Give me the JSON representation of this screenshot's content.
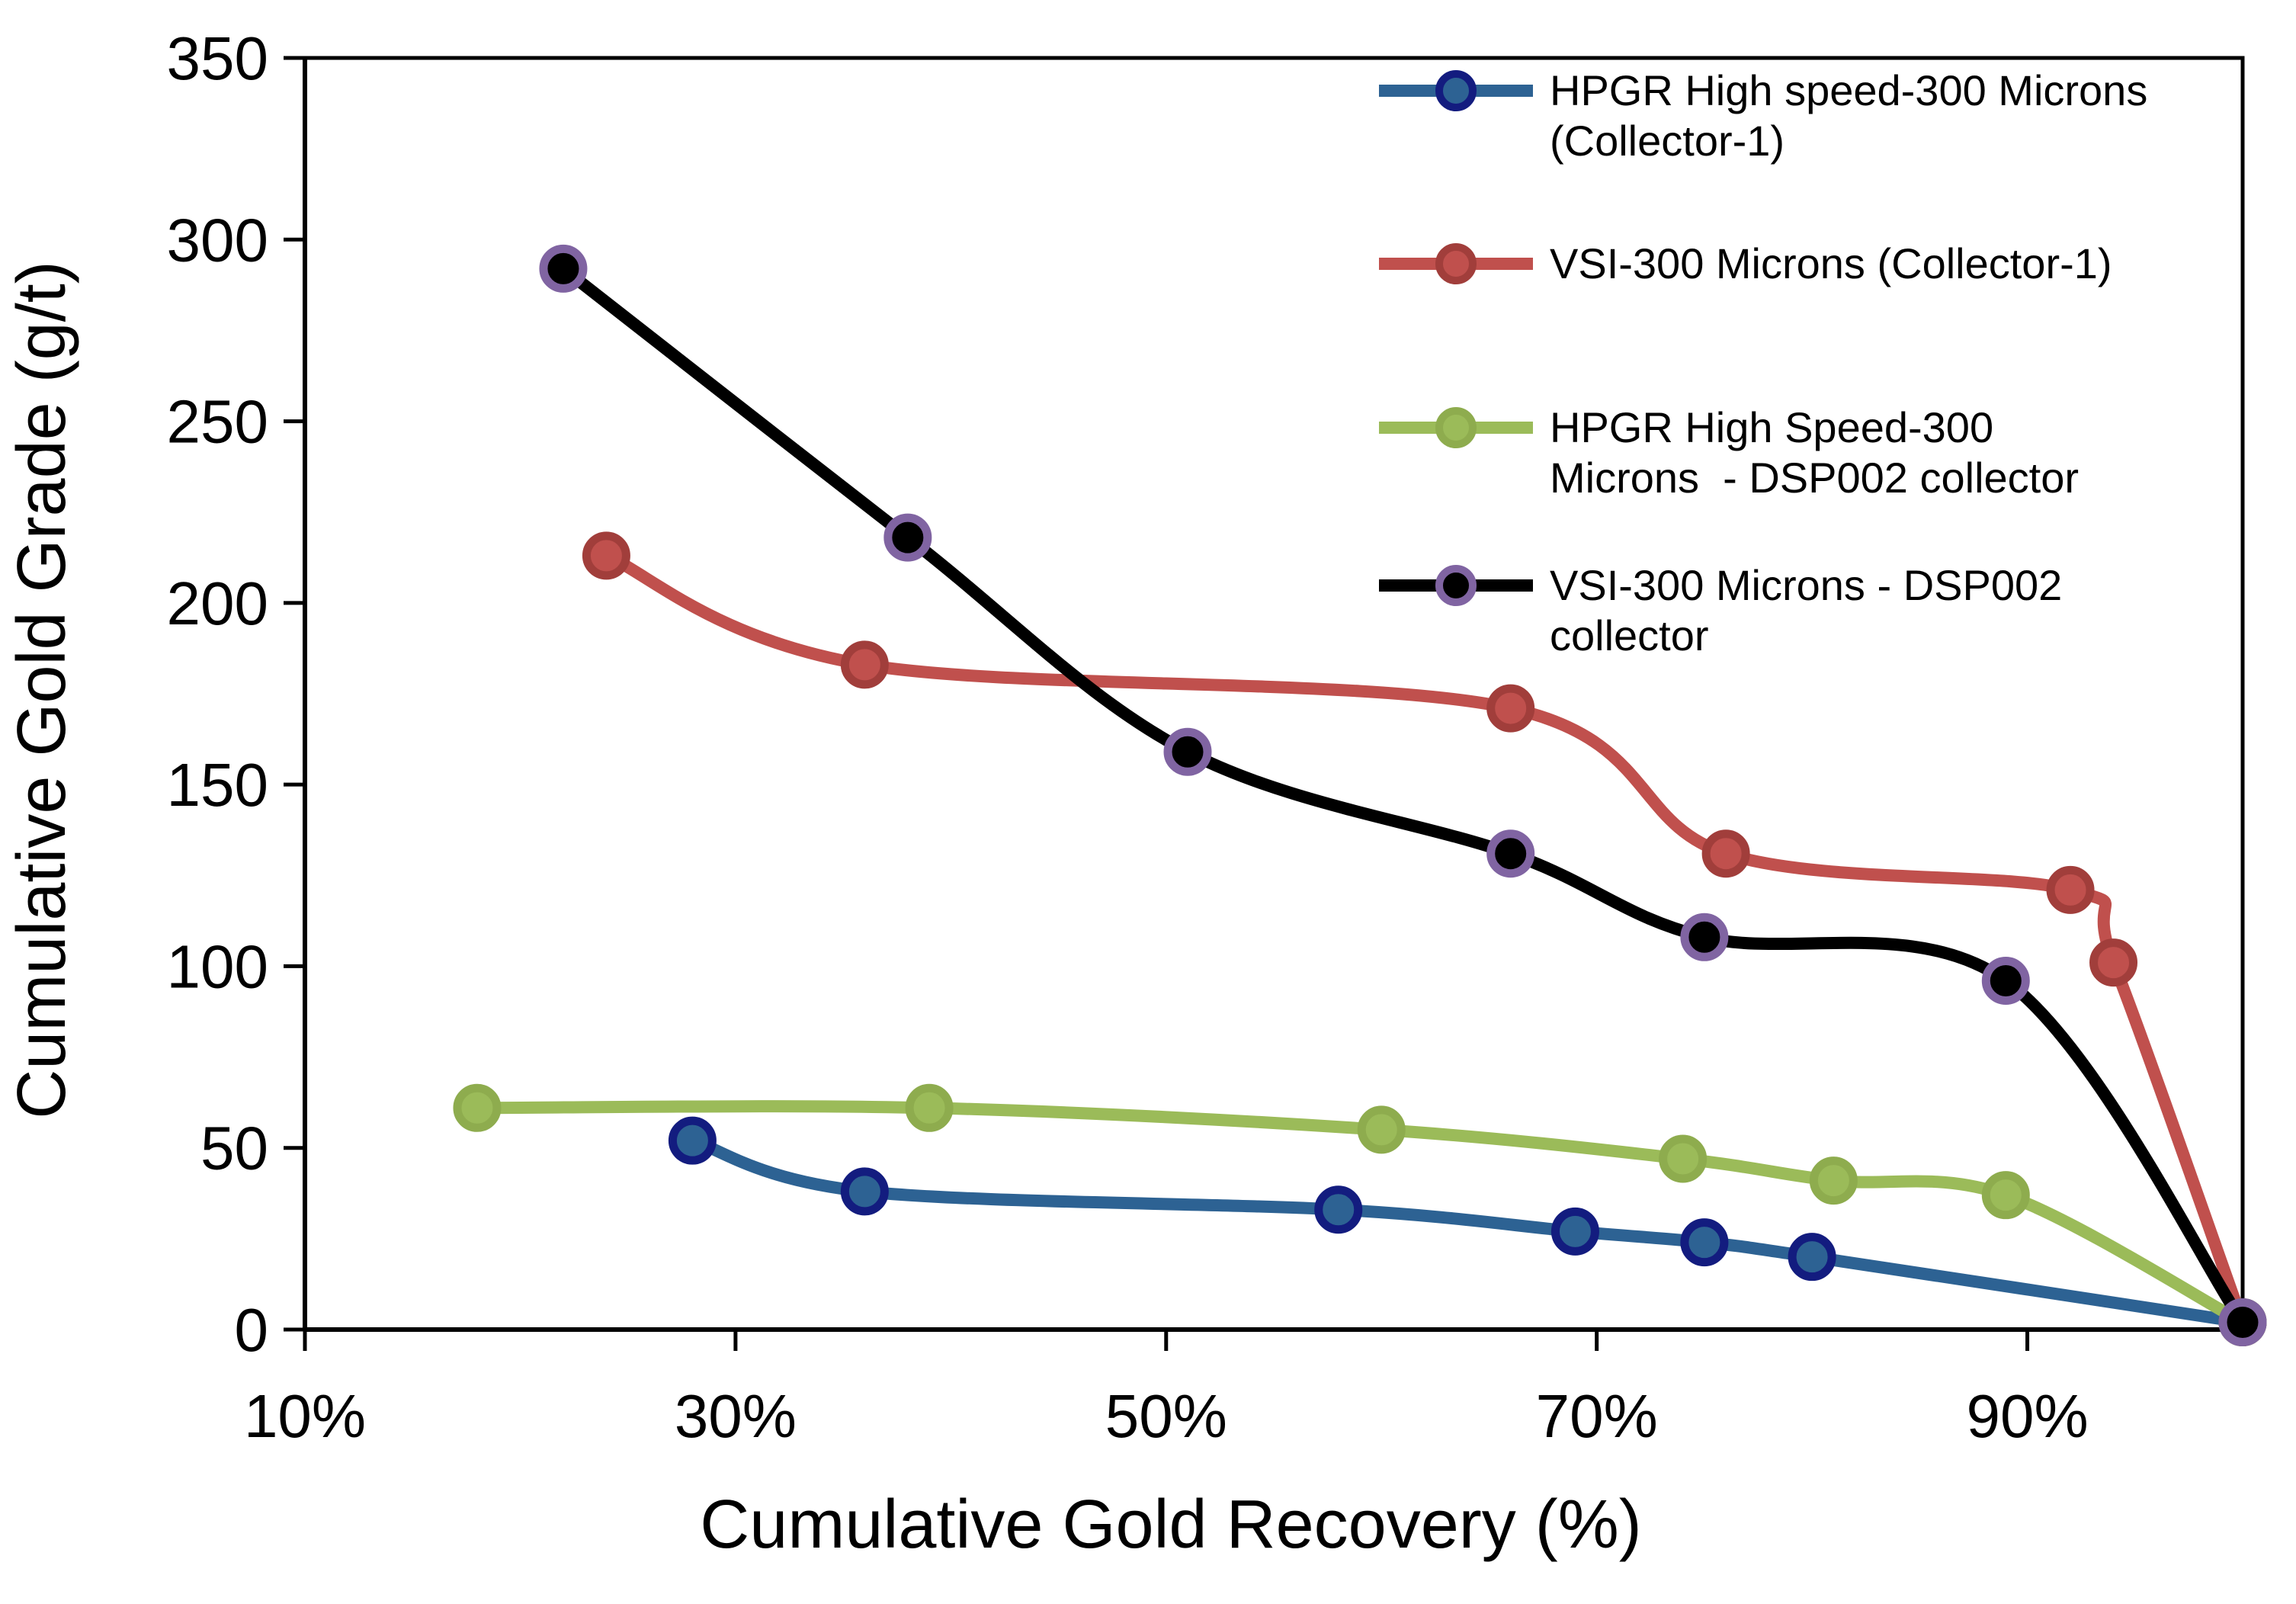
{
  "chart_data": {
    "type": "line",
    "title": "",
    "xlabel": "Cumulative Gold Recovery (%)",
    "ylabel": "Cumulative Gold Grade (g/t)",
    "xlim": [
      10,
      100
    ],
    "ylim": [
      0,
      350
    ],
    "x_ticks": [
      {
        "value": 10,
        "label": "10%"
      },
      {
        "value": 30,
        "label": "30%"
      },
      {
        "value": 50,
        "label": "50%"
      },
      {
        "value": 70,
        "label": "70%"
      },
      {
        "value": 90,
        "label": "90%"
      }
    ],
    "y_ticks": [
      {
        "value": 0,
        "label": "0"
      },
      {
        "value": 50,
        "label": "50"
      },
      {
        "value": 100,
        "label": "100"
      },
      {
        "value": 150,
        "label": "150"
      },
      {
        "value": 200,
        "label": "200"
      },
      {
        "value": 250,
        "label": "250"
      },
      {
        "value": 300,
        "label": "300"
      },
      {
        "value": 350,
        "label": "350"
      }
    ],
    "grid": false,
    "legend_position": "top-right",
    "axis_color": "#000000",
    "background_color": "#ffffff",
    "series": [
      {
        "key": "hpgr-high-speed-300-collector1",
        "label": "HPGR High speed-300 Microns (Collector-1)",
        "label_lines": [
          "HPGR High speed-300 Microns",
          "(Collector-1)"
        ],
        "color": "#2D6293",
        "marker_ring": "#131C7F",
        "points": [
          [
            28,
            52
          ],
          [
            36,
            38
          ],
          [
            58,
            33
          ],
          [
            69,
            27
          ],
          [
            75,
            24
          ],
          [
            80,
            20
          ],
          [
            100,
            2
          ]
        ]
      },
      {
        "key": "vsi-300-collector1",
        "label": "VSI-300 Microns (Collector-1)",
        "label_lines": [
          "VSI-300 Microns (Collector-1)"
        ],
        "color": "#C0504D",
        "marker_ring": "#A13E3B",
        "points": [
          [
            24,
            213
          ],
          [
            36,
            183
          ],
          [
            66,
            171
          ],
          [
            76,
            131
          ],
          [
            92,
            121
          ],
          [
            94,
            101
          ],
          [
            100,
            2
          ]
        ]
      },
      {
        "key": "hpgr-high-speed-300-dsp002",
        "label": "HPGR High Speed-300 Microns  - DSP002 collector",
        "label_lines": [
          "HPGR High Speed-300",
          "Microns  - DSP002 collector"
        ],
        "color": "#9BBB59",
        "marker_ring": "#8EAC4E",
        "points": [
          [
            18,
            61
          ],
          [
            39,
            61
          ],
          [
            60,
            55
          ],
          [
            74,
            47
          ],
          [
            81,
            41
          ],
          [
            89,
            37
          ],
          [
            100,
            2
          ]
        ]
      },
      {
        "key": "vsi-300-dsp002",
        "label": "VSI-300 Microns - DSP002 collector",
        "label_lines": [
          "VSI-300 Microns - DSP002",
          "collector"
        ],
        "color": "#000000",
        "marker_ring": "#8064A2",
        "points": [
          [
            22,
            292
          ],
          [
            38,
            218
          ],
          [
            51,
            159
          ],
          [
            66,
            131
          ],
          [
            75,
            108
          ],
          [
            89,
            96
          ],
          [
            100,
            2
          ]
        ]
      }
    ]
  }
}
